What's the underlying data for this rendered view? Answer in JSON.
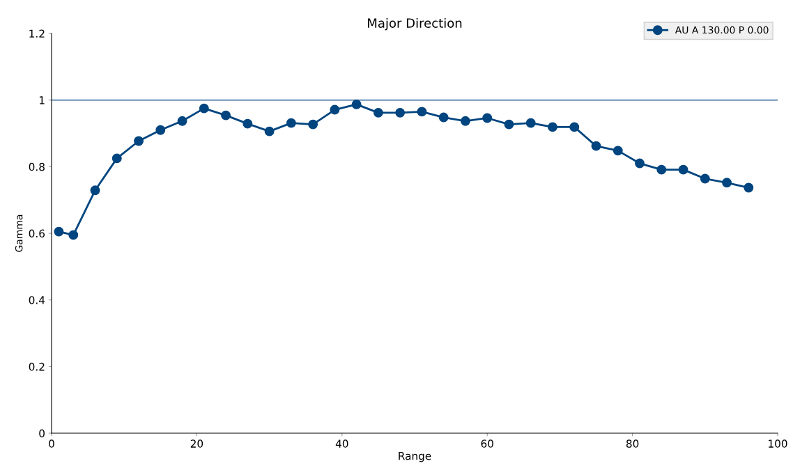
{
  "chart_data": {
    "type": "line",
    "title": "Major Direction",
    "xlabel": "Range",
    "ylabel": "Gamma",
    "xlim": [
      0,
      100
    ],
    "xticks": [
      0,
      20,
      40,
      60,
      80,
      100
    ],
    "ylim": [
      0,
      1.2
    ],
    "yticks": [
      0,
      0.2,
      0.4,
      0.6,
      0.8,
      1,
      1.2
    ],
    "grid": false,
    "legend": "top right",
    "marker": "circle",
    "line_style": "solid",
    "series": [
      {
        "name": "AU A 130.00 P 0.00",
        "color": "#00457f",
        "x": [
          1,
          3,
          6,
          9,
          12,
          15,
          18,
          21,
          24,
          27,
          30,
          33,
          36,
          39,
          42,
          45,
          48,
          51,
          54,
          57,
          60,
          63,
          66,
          69,
          72,
          75,
          78,
          81,
          84,
          87,
          90,
          93,
          96
        ],
        "values": [
          0.605,
          0.595,
          0.729,
          0.825,
          0.877,
          0.91,
          0.937,
          0.975,
          0.954,
          0.929,
          0.906,
          0.931,
          0.927,
          0.971,
          0.987,
          0.962,
          0.962,
          0.965,
          0.948,
          0.937,
          0.946,
          0.927,
          0.931,
          0.919,
          0.919,
          0.862,
          0.848,
          0.81,
          0.791,
          0.791,
          0.764,
          0.752,
          0.737
        ]
      }
    ],
    "ref_lines": [
      {
        "axis": "y",
        "value": 1,
        "color": "#6b91b8",
        "line_style": "solid"
      }
    ]
  }
}
